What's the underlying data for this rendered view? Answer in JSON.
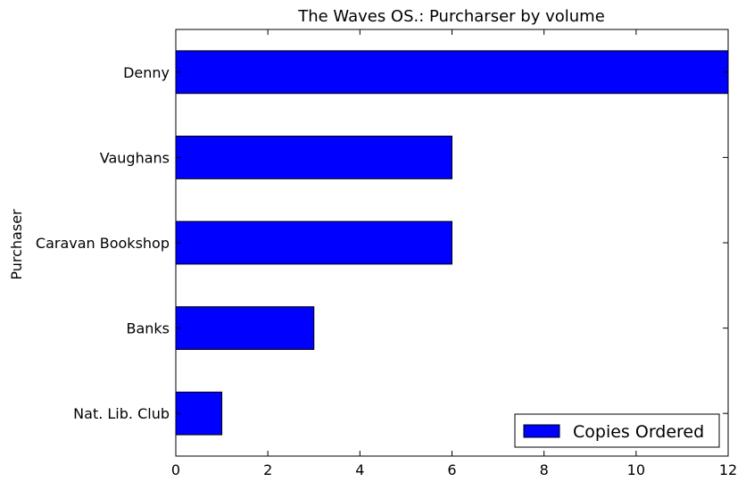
{
  "chart_data": {
    "type": "bar",
    "orientation": "horizontal",
    "title": "The Waves OS.: Purcharser by volume",
    "xlabel": "",
    "ylabel": "Purchaser",
    "categories": [
      "Nat. Lib. Club",
      "Banks",
      "Caravan Bookshop",
      "Vaughans",
      "Denny"
    ],
    "series": [
      {
        "name": "Copies Ordered",
        "values": [
          1,
          3,
          6,
          6,
          12
        ],
        "color": "#0000ff"
      }
    ],
    "xlim": [
      0,
      12
    ],
    "xticks": [
      0,
      2,
      4,
      6,
      8,
      10,
      12
    ],
    "grid": false,
    "legend_position": "lower-right"
  }
}
